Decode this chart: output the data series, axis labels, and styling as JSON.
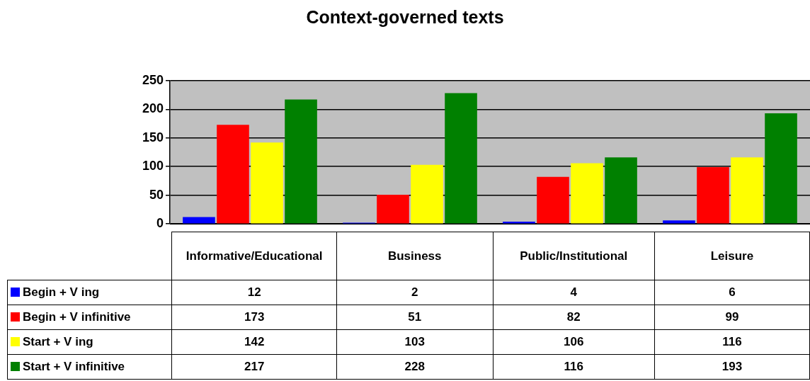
{
  "chart_data": {
    "type": "bar",
    "title": "Context-governed texts",
    "categories": [
      "Informative/Educational",
      "Business",
      "Public/Institutional",
      "Leisure"
    ],
    "series": [
      {
        "name": "Begin + V ing",
        "color": "#0000ff",
        "values": [
          12,
          2,
          4,
          6
        ]
      },
      {
        "name": "Begin + V infinitive",
        "color": "#ff0000",
        "values": [
          173,
          51,
          82,
          99
        ]
      },
      {
        "name": "Start + V ing",
        "color": "#ffff00",
        "values": [
          142,
          103,
          106,
          116
        ]
      },
      {
        "name": "Start + V infinitive",
        "color": "#008000",
        "values": [
          217,
          228,
          116,
          193
        ]
      }
    ],
    "ylim": [
      0,
      250
    ],
    "yticks": [
      0,
      50,
      100,
      150,
      200,
      250
    ],
    "grid": "y",
    "legend": "bottom left",
    "data_labels": true
  }
}
